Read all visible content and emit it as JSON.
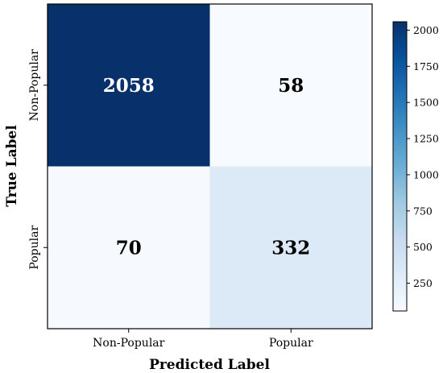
{
  "chart_data": {
    "type": "heatmap",
    "title": "",
    "xlabel": "Predicted Label",
    "ylabel": "True Label",
    "x_categories": [
      "Non-Popular",
      "Popular"
    ],
    "y_categories": [
      "Non-Popular",
      "Popular"
    ],
    "values": [
      [
        2058,
        58
      ],
      [
        70,
        332
      ]
    ],
    "value_labels": [
      [
        "2058",
        "58"
      ],
      [
        "70",
        "332"
      ]
    ],
    "colorbar": {
      "min": 58,
      "max": 2058,
      "ticks": [
        250,
        500,
        750,
        1000,
        1250,
        1500,
        1750,
        2000
      ],
      "tick_labels": [
        "250",
        "500",
        "750",
        "1000",
        "1250",
        "1500",
        "1750",
        "2000"
      ]
    },
    "colormap": "Blues",
    "colors": {
      "low": "#f7fbff",
      "high": "#08306b",
      "text_on_dark": "#ffffff",
      "text_on_light": "#000000"
    },
    "grid": false,
    "legend": "colorbar-right"
  }
}
